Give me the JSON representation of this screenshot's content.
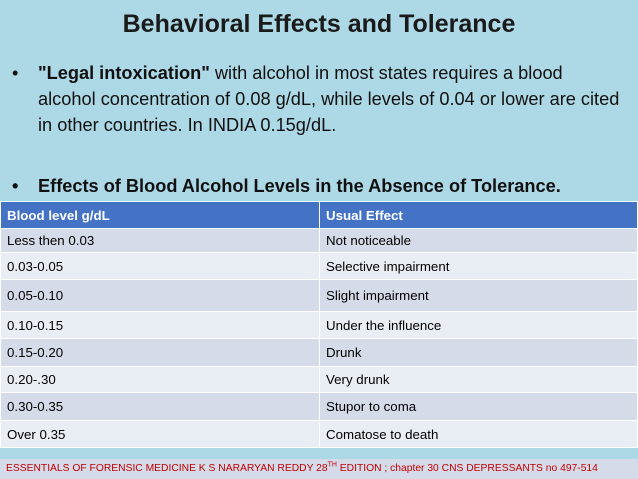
{
  "slide": {
    "title": "Behavioral Effects and  Tolerance",
    "bullet_symbol": "•",
    "bullet1": {
      "bold_text": "\"Legal intoxication\"",
      "text": " with alcohol in most states requires a blood alcohol concentration of 0.08 g/dL, while levels of 0.04 or lower are cited in other countries.  In INDIA 0.15g/dL."
    },
    "bullet2": {
      "text": "Effects of Blood Alcohol Levels in the Absence of Tolerance."
    }
  },
  "table": {
    "headers": [
      "Blood level  g/dL",
      "Usual Effect"
    ],
    "rows": [
      [
        "Less then 0.03",
        "Not noticeable"
      ],
      [
        "0.03-0.05",
        "Selective impairment"
      ],
      [
        "0.05-0.10",
        "Slight impairment"
      ],
      [
        "0.10-0.15",
        "Under the influence"
      ],
      [
        "0.15-0.20",
        "Drunk"
      ],
      [
        "0.20-.30",
        "Very drunk"
      ],
      [
        "0.30-0.35",
        "Stupor to coma"
      ],
      [
        "Over 0.35",
        "Comatose to death"
      ]
    ]
  },
  "footer": {
    "before_sup": "ESSENTIALS OF FORENSIC MEDICINE K S NARARYAN REDDY   28",
    "sup": "TH",
    "after_sup": " EDITION ; chapter 30 CNS DEPRESSANTS no 497-514"
  }
}
